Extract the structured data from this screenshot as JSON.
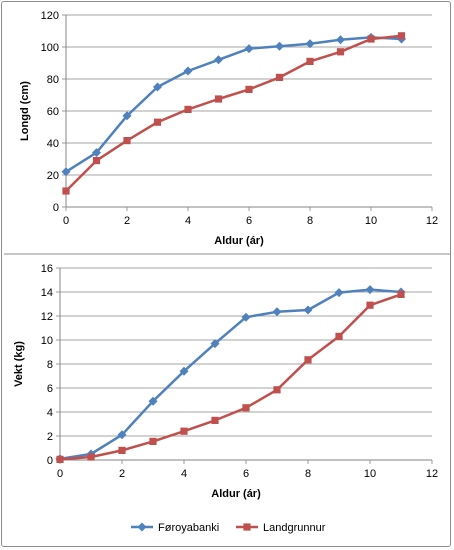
{
  "chart_data": [
    {
      "type": "line",
      "title": "",
      "xlabel": "Aldur (ár)",
      "ylabel": "Longd (cm)",
      "xlim": [
        0,
        12
      ],
      "ylim": [
        0,
        120
      ],
      "xticks": [
        "0",
        "2",
        "4",
        "6",
        "8",
        "10",
        "12"
      ],
      "yticks": [
        "0",
        "20",
        "40",
        "60",
        "80",
        "100",
        "120"
      ],
      "grid": "horizontal",
      "x": [
        0,
        1,
        2,
        3,
        4,
        5,
        6,
        7,
        8,
        9,
        10,
        11
      ],
      "series": [
        {
          "name": "Føroyabanki",
          "color": "#4f81bd",
          "marker": "diamond",
          "values": [
            22,
            34,
            57,
            75,
            85,
            92,
            99,
            100.5,
            102,
            104.5,
            106,
            105
          ]
        },
        {
          "name": "Landgrunnur",
          "color": "#c0504d",
          "marker": "square",
          "values": [
            10,
            29,
            41.5,
            53,
            61,
            67.5,
            73.5,
            81,
            91,
            97,
            105,
            107
          ]
        }
      ]
    },
    {
      "type": "line",
      "title": "",
      "xlabel": "Aldur (ár)",
      "ylabel": "Vekt (kg)",
      "xlim": [
        0,
        12
      ],
      "ylim": [
        0,
        16
      ],
      "xticks": [
        "0",
        "2",
        "4",
        "6",
        "8",
        "10",
        "12"
      ],
      "yticks": [
        "0",
        "2",
        "4",
        "6",
        "8",
        "10",
        "12",
        "14",
        "16"
      ],
      "grid": "horizontal",
      "legend": "bottom",
      "x": [
        0,
        1,
        2,
        3,
        4,
        5,
        6,
        7,
        8,
        9,
        10,
        11
      ],
      "series": [
        {
          "name": "Føroyabanki",
          "color": "#4f81bd",
          "marker": "diamond",
          "values": [
            0.1,
            0.5,
            2.1,
            4.9,
            7.4,
            9.7,
            11.9,
            12.35,
            12.5,
            13.95,
            14.2,
            14.0
          ]
        },
        {
          "name": "Landgrunnur",
          "color": "#c0504d",
          "marker": "square",
          "values": [
            0.05,
            0.25,
            0.8,
            1.55,
            2.4,
            3.3,
            4.35,
            5.85,
            8.35,
            10.3,
            12.9,
            13.8
          ]
        }
      ]
    }
  ],
  "legend": {
    "items": [
      {
        "label": "Føroyabanki",
        "color": "#4f81bd",
        "marker": "diamond"
      },
      {
        "label": "Landgrunnur",
        "color": "#c0504d",
        "marker": "square"
      }
    ]
  }
}
